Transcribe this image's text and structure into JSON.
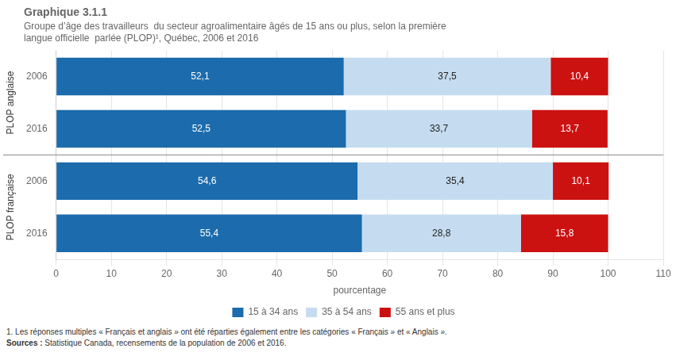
{
  "chart_data": {
    "type": "bar",
    "orientation": "horizontal",
    "stacked": true,
    "data_labels": true,
    "title": "Graphique 3.1.1",
    "subtitle": [
      "Groupe d’âge des travailleurs  du secteur agroalimentaire âgés de 15 ans ou plus, selon la première",
      "langue officielle  parlée (PLOP)¹, Québec, 2006 et 2016"
    ],
    "categories": [
      "2006",
      "2016",
      "2006",
      "2016"
    ],
    "groups": [
      {
        "label": "PLOP anglaise",
        "count": 2
      },
      {
        "label": "PLOP française",
        "count": 2
      }
    ],
    "series": [
      {
        "name": "15 à 34 ans",
        "color": "#1B6BAD",
        "values": [
          52.1,
          52.5,
          54.6,
          55.4
        ],
        "value_labels": [
          "52,1",
          "52,5",
          "54,6",
          "55,4"
        ]
      },
      {
        "name": "35 à 54 ans",
        "color": "#C5DCF0",
        "values": [
          37.5,
          33.7,
          35.4,
          28.8
        ],
        "value_labels": [
          "37,5",
          "33,7",
          "35,4",
          "28,8"
        ]
      },
      {
        "name": "55 ans et plus",
        "color": "#CC1111",
        "values": [
          10.4,
          13.7,
          10.1,
          15.8
        ],
        "value_labels": [
          "10,4",
          "13,7",
          "10,1",
          "15,8"
        ]
      }
    ],
    "xlabel": "pourcentage",
    "xlim": [
      0,
      110
    ],
    "xticks": [
      0,
      10,
      20,
      30,
      40,
      50,
      60,
      70,
      80,
      90,
      100,
      110
    ],
    "grid": true,
    "legend": "bottom",
    "footnote": "1. Les réponses multiples « Français et anglais » ont été réparties également entre les catégories « Français » et « Anglais ».",
    "source_label": "Sources :",
    "source": " Statistique Canada, recensements de la population de 2006 et 2016."
  }
}
